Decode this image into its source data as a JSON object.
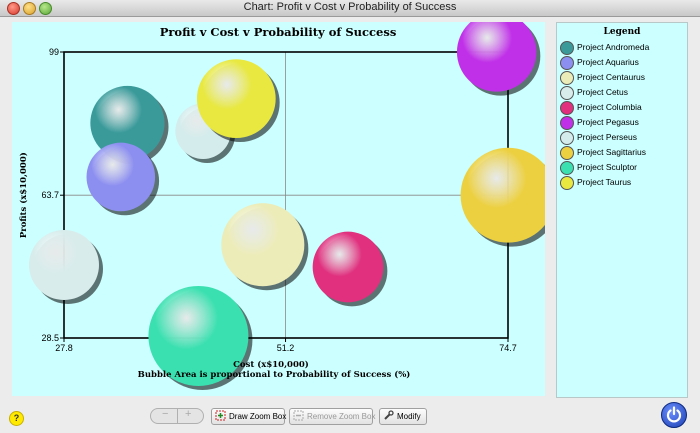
{
  "window": {
    "title": "Chart: Profit v Cost v Probability of Success"
  },
  "legend": {
    "title": "Legend",
    "items": [
      {
        "label": "Project Andromeda",
        "color": "#3a9a9a"
      },
      {
        "label": "Project Aquarius",
        "color": "#8c8ef0"
      },
      {
        "label": "Project Centaurus",
        "color": "#ececb8"
      },
      {
        "label": "Project Cetus",
        "color": "#d8ecec"
      },
      {
        "label": "Project Columbia",
        "color": "#e0307e"
      },
      {
        "label": "Project Pegasus",
        "color": "#c030e8"
      },
      {
        "label": "Project Perseus",
        "color": "#d4ecec"
      },
      {
        "label": "Project Sagittarius",
        "color": "#ecd040"
      },
      {
        "label": "Project Sculptor",
        "color": "#3ae0b0"
      },
      {
        "label": "Project Taurus",
        "color": "#e8e840"
      }
    ]
  },
  "toolbar": {
    "zoom_minus": "−",
    "zoom_plus": "+",
    "draw_zoom_box": "Draw Zoom Box",
    "remove_zoom_box": "Remove Zoom Box",
    "modify": "Modify",
    "help": "?"
  },
  "chart_data": {
    "type": "bubble",
    "title": "Profit v Cost v Probability of Success",
    "xlabel": "Cost (x$10,000)",
    "ylabel": "Profits (x$10,000)",
    "subtitle": "Bubble Area is proportional to Probability of Success (%)",
    "xlim": [
      27.8,
      74.7
    ],
    "ylim": [
      28.5,
      99
    ],
    "xticks": [
      "27.8",
      "51.2",
      "74.7"
    ],
    "yticks": [
      "28.5",
      "63.7",
      "99"
    ],
    "grid": true,
    "series": [
      {
        "name": "Project Andromeda",
        "x": 34.5,
        "y": 81.5,
        "size": 0.55,
        "color": "#3a9a9a"
      },
      {
        "name": "Project Aquarius",
        "x": 33.8,
        "y": 68.2,
        "size": 0.47,
        "color": "#8c8ef0"
      },
      {
        "name": "Project Centaurus",
        "x": 48.8,
        "y": 51.5,
        "size": 0.69,
        "color": "#ececb8"
      },
      {
        "name": "Project Cetus",
        "x": 27.8,
        "y": 46.5,
        "size": 0.49,
        "color": "#d8ecec"
      },
      {
        "name": "Project Columbia",
        "x": 57.8,
        "y": 46.0,
        "size": 0.5,
        "color": "#e0307e"
      },
      {
        "name": "Project Pegasus",
        "x": 73.5,
        "y": 99.0,
        "size": 0.63,
        "color": "#c030e8"
      },
      {
        "name": "Project Perseus",
        "x": 42.5,
        "y": 79.5,
        "size": 0.31,
        "color": "#d4ecec"
      },
      {
        "name": "Project Sagittarius",
        "x": 74.7,
        "y": 63.7,
        "size": 0.9,
        "color": "#ecd040"
      },
      {
        "name": "Project Sculptor",
        "x": 42.0,
        "y": 29.0,
        "size": 1.0,
        "color": "#3ae0b0"
      },
      {
        "name": "Project Taurus",
        "x": 46.0,
        "y": 87.5,
        "size": 0.62,
        "color": "#e8e840"
      }
    ]
  }
}
